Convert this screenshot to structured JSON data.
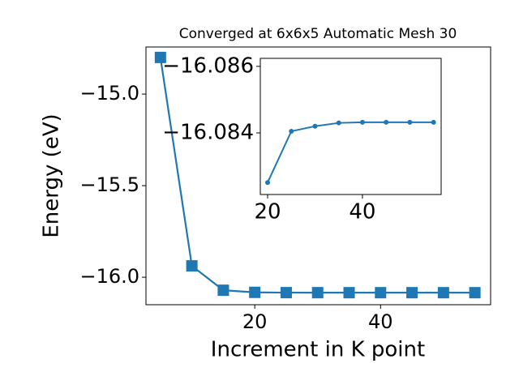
{
  "chart_data": [
    {
      "type": "line",
      "title": "Converged at 6x6x5 Automatic Mesh 30",
      "xlabel": "Increment in K point",
      "ylabel": "Energy (eV)",
      "x": [
        5,
        10,
        15,
        20,
        25,
        30,
        35,
        40,
        45,
        50,
        55
      ],
      "series": [
        {
          "color": "#1f77b4",
          "marker": "square",
          "values": [
            -14.8,
            -15.938,
            -16.071,
            -16.0825,
            -16.084,
            -16.0842,
            -16.0843,
            -16.0843,
            -16.0843,
            -16.0843,
            -16.0843
          ]
        }
      ],
      "xlim": [
        2.7,
        57.5
      ],
      "ylim": [
        -16.15,
        -14.743
      ],
      "xticks": [
        20,
        40
      ],
      "yticks": [
        {
          "value": -15.0,
          "label": "−15.0"
        },
        {
          "value": -15.5,
          "label": "−15.5"
        },
        {
          "value": -16.0,
          "label": "−16.0"
        }
      ]
    },
    {
      "type": "line",
      "x": [
        20,
        25,
        30,
        35,
        40,
        45,
        50,
        55
      ],
      "series": [
        {
          "color": "#1f77b4",
          "marker": "circle",
          "values": [
            -16.08251,
            -16.08405,
            -16.0842,
            -16.0843,
            -16.08432,
            -16.08432,
            -16.08432,
            -16.08432
          ]
        }
      ],
      "xlim": [
        18.46,
        56.6
      ],
      "ylim": [
        -16.08215,
        -16.08624
      ],
      "xticks": [
        20,
        40
      ],
      "yticks": [
        {
          "value": -16.086,
          "label": "−16.086"
        },
        {
          "value": -16.084,
          "label": "−16.084"
        }
      ]
    }
  ]
}
